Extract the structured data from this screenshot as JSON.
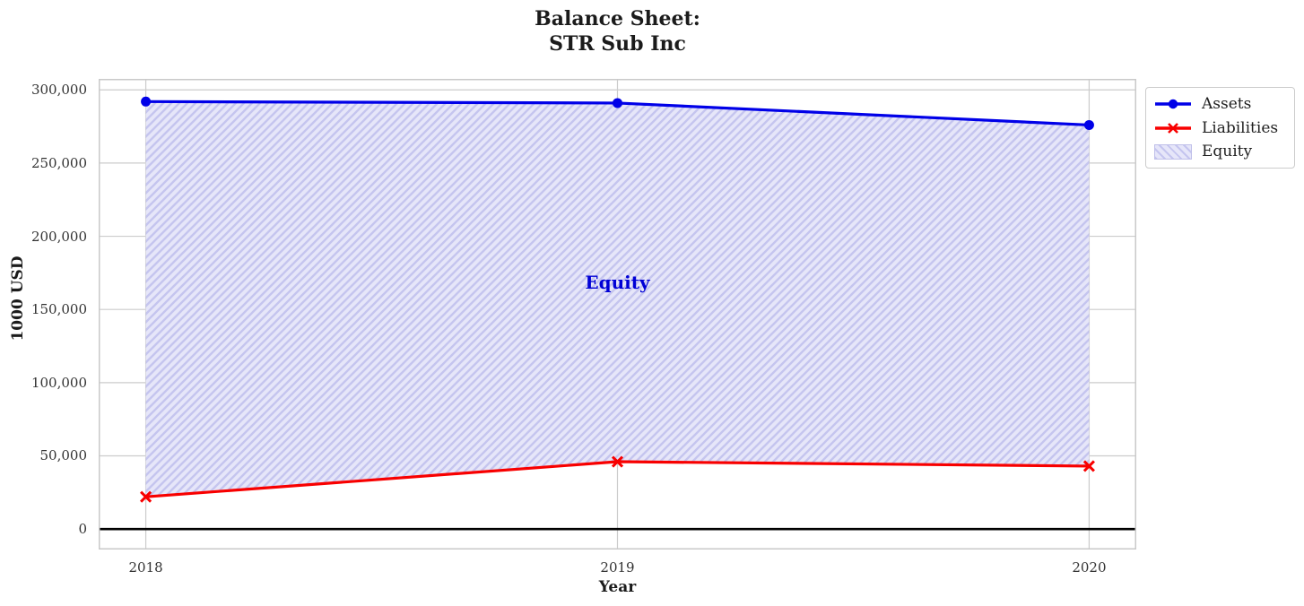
{
  "chart": {
    "title_line1": "Balance Sheet:",
    "title_line2": "STR Sub Inc",
    "xlabel": "Year",
    "ylabel": "1000 USD",
    "annotation": "Equity"
  },
  "legend": {
    "items": [
      {
        "label": "Assets"
      },
      {
        "label": "Liabilities"
      },
      {
        "label": "Equity"
      }
    ]
  },
  "chart_data": {
    "type": "line",
    "title": "Balance Sheet:\nSTR Sub Inc",
    "xlabel": "Year",
    "ylabel": "1000 USD",
    "x": [
      2018,
      2019,
      2020
    ],
    "x_tick_labels": [
      "2018",
      "2019",
      "2020"
    ],
    "series": [
      {
        "name": "Assets",
        "values": [
          292000,
          291000,
          276000
        ],
        "color": "#0000e8",
        "marker": "circle"
      },
      {
        "name": "Liabilities",
        "values": [
          22000,
          46000,
          43000
        ],
        "color": "#f80000",
        "marker": "x"
      }
    ],
    "area": {
      "name": "Equity",
      "between": [
        "Liabilities",
        "Assets"
      ],
      "facecolor": "#e6e6f9",
      "hatch_color": "#c5c5ef",
      "hatch": "//",
      "label_x": 2019,
      "label_y": 168500,
      "label_color": "#0000d6"
    },
    "y_ticks": [
      0,
      50000,
      100000,
      150000,
      200000,
      250000,
      300000
    ],
    "y_tick_labels": [
      "0",
      "50,000",
      "100,000",
      "150,000",
      "200,000",
      "250,000",
      "300,000"
    ],
    "ylim": [
      -14000,
      307500
    ],
    "xlim": [
      2017.9,
      2020.1
    ],
    "grid": true,
    "grid_color": "#cccccc",
    "spine_color": "#c9c9c9",
    "zero_line": true,
    "zero_line_color": "#000000",
    "legend_position": "outside-upper-right"
  }
}
